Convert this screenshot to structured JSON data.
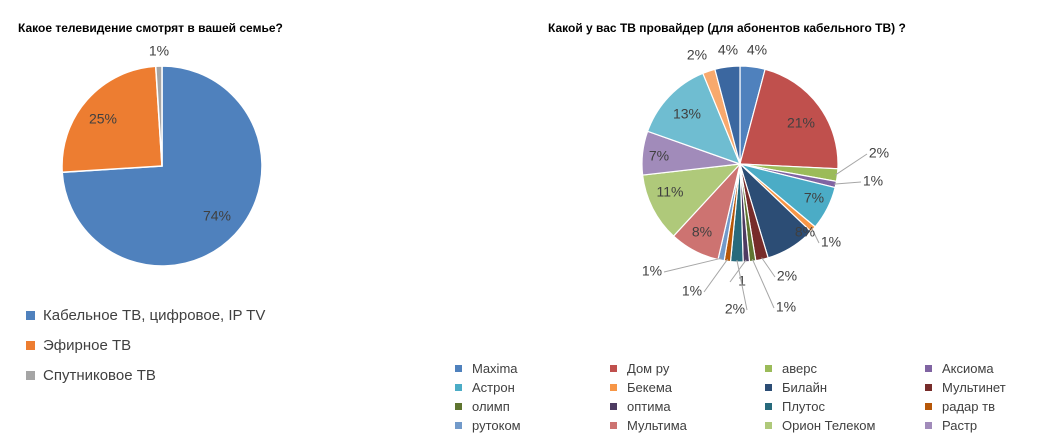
{
  "chart_data": [
    {
      "type": "pie",
      "title": "Какое телевидение смотрят в вашей семье?",
      "categories": [
        "Кабельное ТВ, цифровое, IP TV",
        "Эфирное ТВ",
        "Спутниковое ТВ"
      ],
      "values": [
        74,
        25,
        1
      ],
      "labels": [
        "74%",
        "25%",
        "1%"
      ],
      "colors": [
        "#4F81BD",
        "#ED7D31",
        "#A5A5A5"
      ],
      "legend": "bottom-left"
    },
    {
      "type": "pie",
      "title": "Какой у вас ТВ провайдер (для абонентов кабельного ТВ) ?",
      "categories": [
        "Maxima",
        "Дом ру",
        "аверс",
        "Аксиома",
        "Астрон",
        "Бекема",
        "Билайн",
        "Мультинет",
        "олимп",
        " оптима",
        "Плутос",
        "радар тв",
        "рутоком",
        "Мультима",
        "Орион Телеком",
        "Растр",
        "",
        "",
        ""
      ],
      "values": [
        4,
        21,
        2,
        1,
        7,
        1,
        8,
        2,
        1,
        1,
        2,
        1,
        1,
        8,
        11,
        7,
        13,
        2,
        4
      ],
      "labels": [
        "4%",
        "21%",
        "2%",
        "1%",
        "7%",
        "1%",
        "8%",
        "2%",
        "1%",
        "1",
        "2%",
        "1%",
        "1%",
        "8%",
        "11%",
        "7%",
        "13%",
        "2%",
        "4%"
      ],
      "colors": [
        "#4F81BD",
        "#C0504D",
        "#9BBB59",
        "#8064A2",
        "#4BACC6",
        "#F79646",
        "#2C4D75",
        "#772C2A",
        "#5F7530",
        "#4D3B62",
        "#276A7C",
        "#B65708",
        "#729ACA",
        "#CD7371",
        "#AFC97A",
        "#A18BBA",
        "#6FBDD1",
        "#F8A96D",
        "#3B67A0"
      ],
      "legend": "bottom"
    }
  ]
}
